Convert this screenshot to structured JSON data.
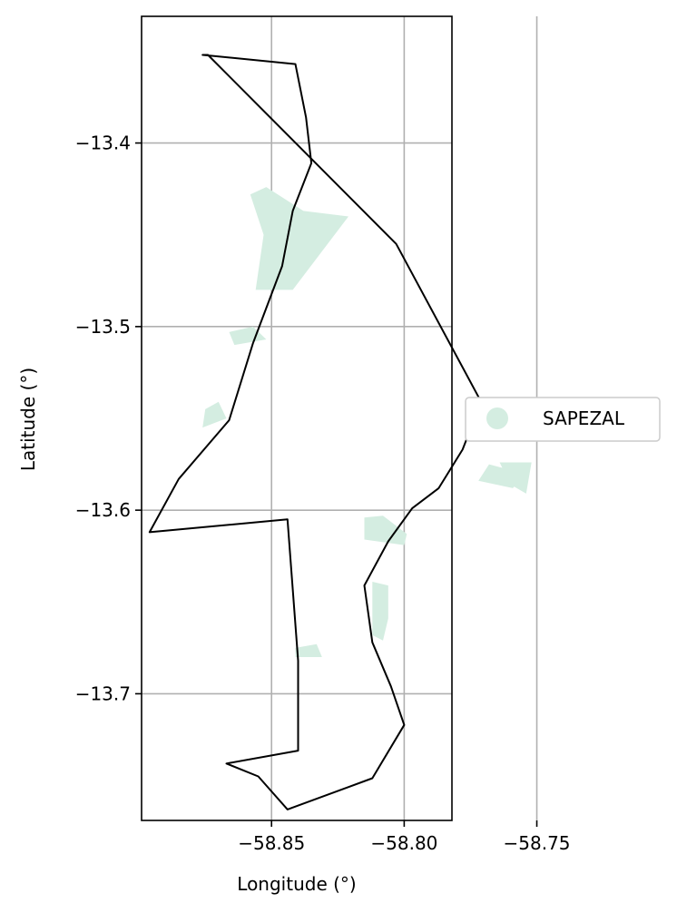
{
  "chart_data": {
    "type": "map",
    "xlabel": "Longitude (°)",
    "ylabel": "Latitude (°)",
    "xlim": [
      -58.899,
      -58.782
    ],
    "ylim": [
      -13.769,
      -13.331
    ],
    "xticks": [
      {
        "value": -58.85,
        "label": "−58.85"
      },
      {
        "value": -58.8,
        "label": "−58.80"
      },
      {
        "value": -58.75,
        "label": "−58.75"
      }
    ],
    "yticks": [
      {
        "value": -13.4,
        "label": "−13.4"
      },
      {
        "value": -13.5,
        "label": "−13.5"
      },
      {
        "value": -13.6,
        "label": "−13.6"
      },
      {
        "value": -13.7,
        "label": "−13.7"
      }
    ],
    "grid": true,
    "legend": {
      "placement": "right",
      "entries": [
        {
          "label": "SAPEZAL",
          "color": "#d4ede1"
        }
      ]
    },
    "boundary": [
      [
        -58.876,
        -13.352
      ],
      [
        -58.874,
        -13.352
      ],
      [
        -58.803,
        -13.455
      ],
      [
        -58.771,
        -13.541
      ],
      [
        -58.778,
        -13.567
      ],
      [
        -58.787,
        -13.588
      ],
      [
        -58.797,
        -13.599
      ],
      [
        -58.806,
        -13.617
      ],
      [
        -58.815,
        -13.641
      ],
      [
        -58.812,
        -13.672
      ],
      [
        -58.805,
        -13.696
      ],
      [
        -58.8,
        -13.717
      ],
      [
        -58.812,
        -13.746
      ],
      [
        -58.844,
        -13.763
      ],
      [
        -58.855,
        -13.745
      ],
      [
        -58.867,
        -13.738
      ],
      [
        -58.84,
        -13.731
      ],
      [
        -58.84,
        -13.682
      ],
      [
        -58.844,
        -13.605
      ],
      [
        -58.896,
        -13.612
      ],
      [
        -58.885,
        -13.583
      ],
      [
        -58.866,
        -13.551
      ],
      [
        -58.857,
        -13.509
      ],
      [
        -58.846,
        -13.467
      ],
      [
        -58.842,
        -13.437
      ],
      [
        -58.835,
        -13.411
      ],
      [
        -58.837,
        -13.386
      ],
      [
        -58.841,
        -13.357
      ],
      [
        -58.876,
        -13.352
      ]
    ],
    "features": [
      {
        "name": "SAPEZAL",
        "coords": [
          [
            -58.858,
            -13.428
          ],
          [
            -58.852,
            -13.424
          ],
          [
            -58.838,
            -13.437
          ],
          [
            -58.821,
            -13.44
          ],
          [
            -58.842,
            -13.48
          ],
          [
            -58.856,
            -13.48
          ],
          [
            -58.853,
            -13.45
          ],
          [
            -58.858,
            -13.428
          ]
        ]
      },
      {
        "name": "SAPEZAL",
        "coords": [
          [
            -58.866,
            -13.503
          ],
          [
            -58.857,
            -13.5
          ],
          [
            -58.852,
            -13.507
          ],
          [
            -58.864,
            -13.51
          ],
          [
            -58.866,
            -13.503
          ]
        ]
      },
      {
        "name": "SAPEZAL",
        "coords": [
          [
            -58.875,
            -13.545
          ],
          [
            -58.87,
            -13.541
          ],
          [
            -58.867,
            -13.55
          ],
          [
            -58.876,
            -13.555
          ],
          [
            -58.875,
            -13.545
          ]
        ]
      },
      {
        "name": "SAPEZAL",
        "coords": [
          [
            -58.768,
            -13.575
          ],
          [
            -58.772,
            -13.584
          ],
          [
            -58.759,
            -13.588
          ],
          [
            -58.755,
            -13.58
          ],
          [
            -58.768,
            -13.575
          ]
        ]
      },
      {
        "name": "SAPEZAL",
        "coords": [
          [
            -58.764,
            -13.574
          ],
          [
            -58.752,
            -13.574
          ],
          [
            -58.754,
            -13.591
          ],
          [
            -58.76,
            -13.586
          ],
          [
            -58.764,
            -13.574
          ]
        ]
      },
      {
        "name": "SAPEZAL",
        "coords": [
          [
            -58.815,
            -13.604
          ],
          [
            -58.808,
            -13.603
          ],
          [
            -58.799,
            -13.613
          ],
          [
            -58.8,
            -13.619
          ],
          [
            -58.815,
            -13.616
          ],
          [
            -58.815,
            -13.604
          ]
        ]
      },
      {
        "name": "SAPEZAL",
        "coords": [
          [
            -58.812,
            -13.639
          ],
          [
            -58.806,
            -13.641
          ],
          [
            -58.806,
            -13.659
          ],
          [
            -58.808,
            -13.671
          ],
          [
            -58.812,
            -13.668
          ],
          [
            -58.812,
            -13.639
          ]
        ]
      },
      {
        "name": "SAPEZAL",
        "coords": [
          [
            -58.841,
            -13.675
          ],
          [
            -58.833,
            -13.673
          ],
          [
            -58.831,
            -13.68
          ],
          [
            -58.841,
            -13.68
          ],
          [
            -58.841,
            -13.675
          ]
        ]
      }
    ]
  }
}
